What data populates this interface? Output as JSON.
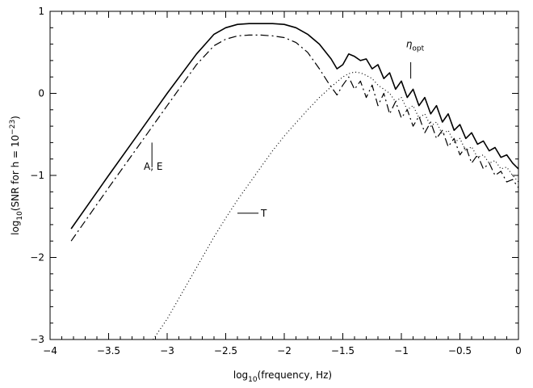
{
  "chart_data": {
    "type": "line",
    "title": "",
    "xlabel": {
      "prefix": "log",
      "sub": "10",
      "suffix": "(frequency, Hz)"
    },
    "ylabel": {
      "prefix": "log",
      "sub": "10",
      "middle": "(SNR for h = 10",
      "sup": "−23",
      "suffix": ")"
    },
    "xlim": [
      -4,
      0
    ],
    "ylim": [
      -3,
      1
    ],
    "x_ticks": [
      -4,
      -3.5,
      -3,
      -2.5,
      -2,
      -1.5,
      -1,
      -0.5,
      0
    ],
    "x_tick_labels": [
      "−4",
      "−3.5",
      "−3",
      "−2.5",
      "−2",
      "−1.5",
      "−1",
      "−0.5",
      "0"
    ],
    "y_ticks": [
      -3,
      -2,
      -1,
      0,
      1
    ],
    "y_tick_labels": [
      "−3",
      "−2",
      "−1",
      "0",
      "1"
    ],
    "series": [
      {
        "name": "eta_opt",
        "style": "solid",
        "x": [
          -3.82,
          -3.5,
          -3.25,
          -3.0,
          -2.75,
          -2.6,
          -2.5,
          -2.4,
          -2.3,
          -2.2,
          -2.1,
          -2.0,
          -1.9,
          -1.8,
          -1.7,
          -1.6,
          -1.55,
          -1.5,
          -1.45,
          -1.4,
          -1.35,
          -1.3,
          -1.25,
          -1.2,
          -1.15,
          -1.1,
          -1.05,
          -1.0,
          -0.95,
          -0.9,
          -0.85,
          -0.8,
          -0.75,
          -0.7,
          -0.65,
          -0.6,
          -0.55,
          -0.5,
          -0.45,
          -0.4,
          -0.35,
          -0.3,
          -0.25,
          -0.2,
          -0.15,
          -0.1,
          -0.05,
          0.0
        ],
        "y": [
          -1.65,
          -1.0,
          -0.5,
          0.0,
          0.48,
          0.72,
          0.8,
          0.84,
          0.85,
          0.85,
          0.85,
          0.84,
          0.8,
          0.72,
          0.6,
          0.42,
          0.3,
          0.35,
          0.48,
          0.45,
          0.4,
          0.42,
          0.3,
          0.35,
          0.18,
          0.25,
          0.05,
          0.15,
          -0.05,
          0.05,
          -0.15,
          -0.05,
          -0.25,
          -0.15,
          -0.35,
          -0.25,
          -0.45,
          -0.38,
          -0.55,
          -0.48,
          -0.62,
          -0.58,
          -0.7,
          -0.66,
          -0.78,
          -0.75,
          -0.85,
          -0.92
        ]
      },
      {
        "name": "A, E",
        "style": "dashdot",
        "x": [
          -3.82,
          -3.5,
          -3.25,
          -3.0,
          -2.75,
          -2.6,
          -2.5,
          -2.4,
          -2.3,
          -2.2,
          -2.1,
          -2.0,
          -1.9,
          -1.8,
          -1.7,
          -1.62,
          -1.55,
          -1.5,
          -1.45,
          -1.4,
          -1.35,
          -1.3,
          -1.25,
          -1.2,
          -1.15,
          -1.1,
          -1.05,
          -1.0,
          -0.95,
          -0.9,
          -0.85,
          -0.8,
          -0.75,
          -0.7,
          -0.65,
          -0.6,
          -0.55,
          -0.5,
          -0.45,
          -0.4,
          -0.35,
          -0.3,
          -0.25,
          -0.2,
          -0.15,
          -0.1,
          -0.05,
          0.0
        ],
        "y": [
          -1.8,
          -1.15,
          -0.65,
          -0.15,
          0.35,
          0.58,
          0.66,
          0.7,
          0.71,
          0.71,
          0.7,
          0.68,
          0.62,
          0.5,
          0.3,
          0.12,
          -0.02,
          0.1,
          0.2,
          0.05,
          0.15,
          -0.05,
          0.1,
          -0.15,
          0.0,
          -0.25,
          -0.1,
          -0.3,
          -0.2,
          -0.4,
          -0.28,
          -0.48,
          -0.35,
          -0.55,
          -0.45,
          -0.65,
          -0.55,
          -0.75,
          -0.65,
          -0.85,
          -0.75,
          -0.92,
          -0.85,
          -1.0,
          -0.95,
          -1.08,
          -1.05,
          -1.15
        ]
      },
      {
        "name": "T",
        "style": "dotted",
        "x": [
          -3.12,
          -3.0,
          -2.9,
          -2.8,
          -2.7,
          -2.6,
          -2.5,
          -2.4,
          -2.3,
          -2.2,
          -2.1,
          -2.0,
          -1.9,
          -1.8,
          -1.7,
          -1.6,
          -1.5,
          -1.45,
          -1.4,
          -1.35,
          -1.3,
          -1.25,
          -1.2,
          -1.15,
          -1.1,
          -1.05,
          -1.0,
          -0.95,
          -0.9,
          -0.85,
          -0.8,
          -0.75,
          -0.7,
          -0.65,
          -0.6,
          -0.55,
          -0.5,
          -0.45,
          -0.4,
          -0.35,
          -0.3,
          -0.25,
          -0.2,
          -0.15,
          -0.1,
          -0.05,
          0.0
        ],
        "y": [
          -3.0,
          -2.75,
          -2.5,
          -2.25,
          -2.0,
          -1.75,
          -1.52,
          -1.3,
          -1.1,
          -0.9,
          -0.7,
          -0.52,
          -0.36,
          -0.2,
          -0.05,
          0.08,
          0.2,
          0.24,
          0.26,
          0.25,
          0.22,
          0.18,
          0.1,
          0.05,
          0.0,
          -0.1,
          -0.05,
          -0.2,
          -0.15,
          -0.3,
          -0.25,
          -0.4,
          -0.35,
          -0.5,
          -0.45,
          -0.6,
          -0.55,
          -0.7,
          -0.65,
          -0.78,
          -0.75,
          -0.85,
          -0.82,
          -0.92,
          -0.9,
          -1.0,
          -1.08
        ]
      }
    ],
    "annotations": [
      {
        "id": "eta",
        "text": "η",
        "sub": "opt",
        "x": -0.96,
        "y": 0.56,
        "pointer_from": [
          -0.92,
          0.38
        ],
        "pointer_to": [
          -0.92,
          0.18
        ]
      },
      {
        "id": "ae",
        "text": "A,  E",
        "x": -3.2,
        "y": -0.93,
        "pointer_from": [
          -3.13,
          -0.6
        ],
        "pointer_to": [
          -3.13,
          -0.9
        ]
      },
      {
        "id": "t",
        "text": "T",
        "x": -2.2,
        "y": -1.5,
        "pointer_from": [
          -2.4,
          -1.46
        ],
        "pointer_to": [
          -2.22,
          -1.46
        ]
      }
    ]
  }
}
